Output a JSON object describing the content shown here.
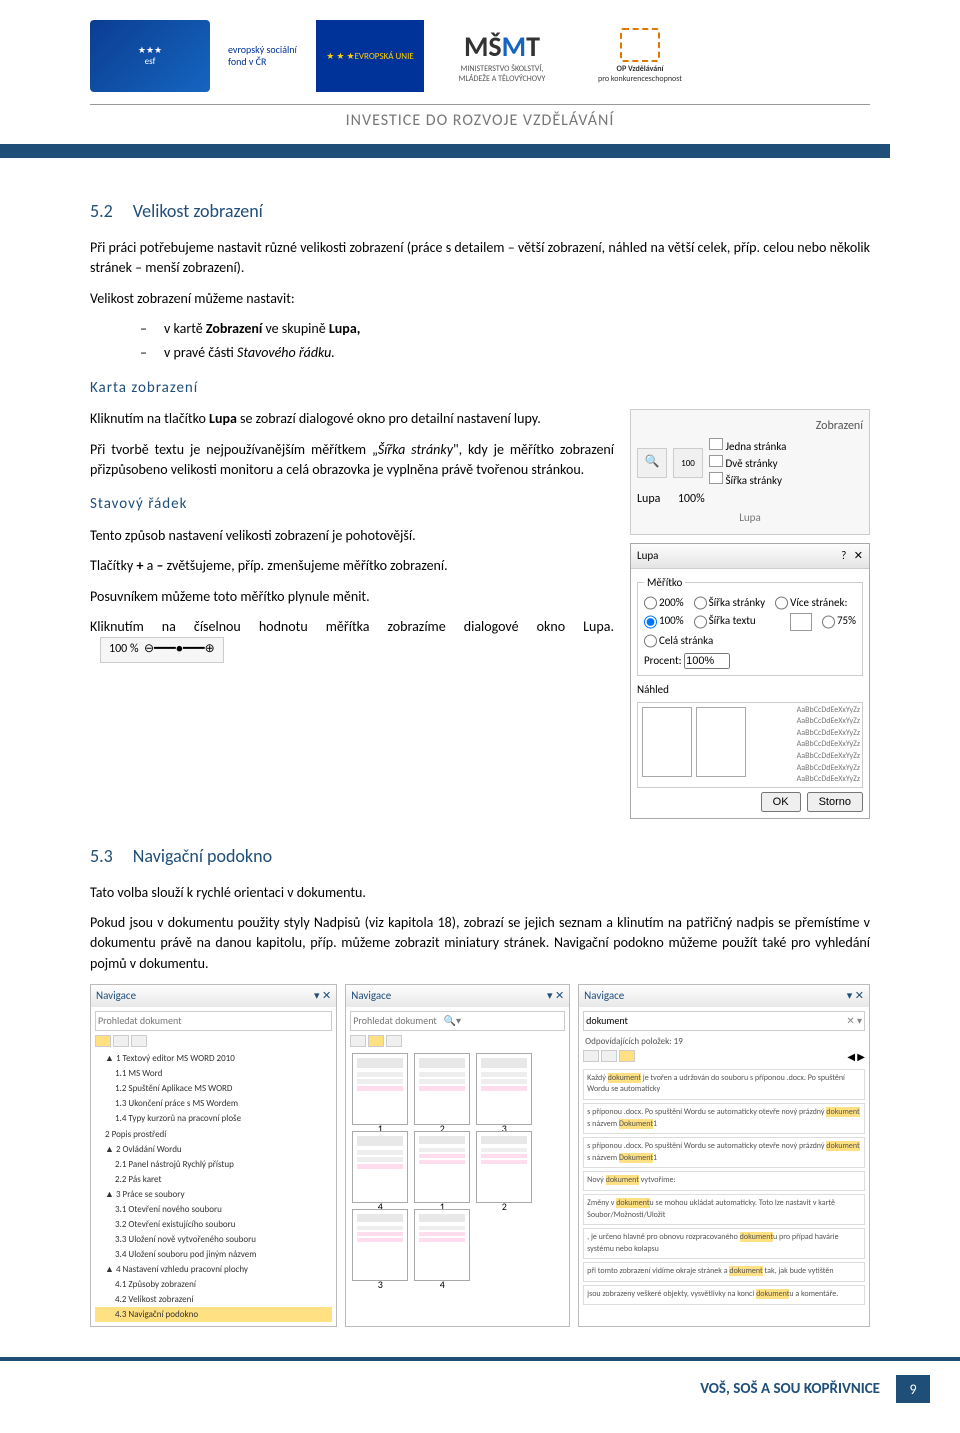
{
  "header": {
    "logos": {
      "esf_text": "evropský\nsociální\nfond v ČR",
      "eu_text": "EVROPSKÁ UNIE",
      "msmt_line1": "MINISTERSTVO ŠKOLSTVÍ,",
      "msmt_line2": "MLÁDEŽE A TĚLOVÝCHOVY",
      "opvk_line1": "OP Vzdělávání",
      "opvk_line2": "pro konkurenceschopnost"
    },
    "investice": "INVESTICE DO ROZVOJE VZDĚLÁVÁNÍ"
  },
  "sec52": {
    "num": "5.2",
    "title": "Velikost zobrazení",
    "p1": "Při práci potřebujeme nastavit různé velikosti zobrazení (práce s detailem – větší zobrazení, náhled na větší celek, příp. celou nebo několik stránek – menší zobrazení).",
    "p2": "Velikost zobrazení můžeme nastavit:",
    "li1_a": "v kartě ",
    "li1_b": "Zobrazení",
    "li1_c": " ve skupině ",
    "li1_d": "Lupa,",
    "li2_a": "v pravé části ",
    "li2_b": "Stavového řádku."
  },
  "karta": {
    "title": "Karta zobrazení",
    "p1a": "Kliknutím na tlačítko ",
    "p1b": "Lupa",
    "p1c": " se zobrazí dialogové okno pro detailní nastavení lupy.",
    "p2a": "Při tvorbě textu je nejpoužívanějším měřítkem „",
    "p2b": "Šířka stránky",
    "p2c": "\", kdy je měřítko zobrazení přizpůsobeno velikosti monitoru a celá obrazovka je vyplněna právě tvořenou stránkou."
  },
  "stavovy": {
    "title": "Stavový řádek",
    "p1": "Tento způsob nastavení velikosti zobrazení je pohotovější.",
    "p2a": "Tlačítky ",
    "p2b": "+",
    "p2c": " a ",
    "p2d": "–",
    "p2e": " zvětšujeme, příp. zmenšujeme měřítko zobrazení.",
    "p3": "Posuvníkem můžeme toto měřítko plynule měnit.",
    "p4": "Kliknutím na číselnou hodnotu měřítka zobrazíme dialogové okno Lupa.",
    "zoom_pct": "100 %"
  },
  "zoom_group": {
    "caption": "Zobrazení",
    "jedna": "Jedna stránka",
    "dve": "Dvě stránky",
    "sirka": "Šířka stránky",
    "lupa": "Lupa",
    "pct": "100%",
    "group_label": "Lupa"
  },
  "lupa_dialog": {
    "title": "Lupa",
    "meritko": "Měřítko",
    "r200": "200%",
    "r100": "100%",
    "r75": "75%",
    "rSirka": "Šířka stránky",
    "rText": "Šířka textu",
    "rCela": "Celá stránka",
    "rVice": "Více stránek:",
    "procent": "Procent:",
    "procent_val": "100%",
    "nahled": "Náhled",
    "style_sample": "AaBbCcDdEeXxYyZz",
    "ok": "OK",
    "storno": "Storno"
  },
  "sec53": {
    "num": "5.3",
    "title": "Navigační podokno",
    "p1": "Tato volba slouží k rychlé orientaci v dokumentu.",
    "p2": "Pokud jsou v dokumentu použity styly Nadpisů (viz kapitola 18), zobrazí se jejich seznam a klinutím na patřičný nadpis se přemístíme v dokumentu právě na danou kapitolu, příp. můžeme zobrazit miniatury stránek. Navigační podokno můžeme použít také pro vyhledání pojmů v dokumentu."
  },
  "nav1": {
    "title": "Navigace",
    "search": "Prohledat dokument",
    "items": [
      {
        "t": "▲ 1 Textový editor MS WORD 2010",
        "lv": 1
      },
      {
        "t": "1.1 MS Word",
        "lv": 2
      },
      {
        "t": "1.2 Spuštění Aplikace MS WORD",
        "lv": 2
      },
      {
        "t": "1.3 Ukončení práce s MS Wordem",
        "lv": 2
      },
      {
        "t": "1.4 Typy kurzorů na pracovní ploše",
        "lv": 2
      },
      {
        "t": "2 Popis prostředí",
        "lv": 1
      },
      {
        "t": "▲ 2 Ovládání Wordu",
        "lv": 1
      },
      {
        "t": "2.1 Panel nástrojů Rychlý přístup",
        "lv": 2
      },
      {
        "t": "2.2 Pás karet",
        "lv": 2
      },
      {
        "t": "▲ 3 Práce se soubory",
        "lv": 1
      },
      {
        "t": "3.1 Otevření nového souboru",
        "lv": 2
      },
      {
        "t": "3.2 Otevření existujícího souboru",
        "lv": 2
      },
      {
        "t": "3.3 Uložení nově vytvořeného souboru",
        "lv": 2
      },
      {
        "t": "3.4 Uložení souboru pod jiným názvem",
        "lv": 2
      },
      {
        "t": "▲ 4 Nastavení vzhledu pracovní plochy",
        "lv": 1
      },
      {
        "t": "4.1 Způsoby zobrazení",
        "lv": 2
      },
      {
        "t": "4.2 Velikost zobrazení",
        "lv": 2
      },
      {
        "t": "4.3 Navigační podokno",
        "lv": 2,
        "sel": true
      }
    ]
  },
  "nav2": {
    "title": "Navigace",
    "search": "Prohledat dokument",
    "nums": [
      "1",
      "2",
      "3",
      "4"
    ]
  },
  "nav3": {
    "title": "Navigace",
    "search_val": "dokument",
    "matches": "Odpovídajících položek: 19",
    "results": [
      "Každý dokument je tvořen a udržován do souboru s příponou .docx. Po spuštění Wordu se automaticky",
      "s příponou .docx. Po spuštění Wordu se automaticky otevře nový prázdný dokument s názvem Dokument1",
      "s příponou .docx. Po spuštění Wordu se automaticky otevře nový prázdný dokument s názvem Dokument1",
      "Nový dokument vytvoříme:",
      "Změny v dokumentu se mohou ukládat automaticky. Toto lze nastavit v kartě Soubor/Možnosti/Uložit",
      ", je určeno hlavně pro obnovu rozpracovaného dokumentu pro případ havárie systému nebo kolapsu",
      "při tomto zobrazení vidíme okraje stránek a dokument tak, jak bude vytištěn",
      "jsou zobrazeny veškeré objekty, vysvětlivky na konci dokumentu a komentáře."
    ]
  },
  "footer": {
    "text": "VOŠ, SOŠ A SOU KOPŘIVNICE",
    "page": "9"
  },
  "colors": {
    "accent": "#1f4e79",
    "eu_blue": "#003399",
    "eu_gold": "#ffcc00",
    "highlight": "#ffe082"
  }
}
